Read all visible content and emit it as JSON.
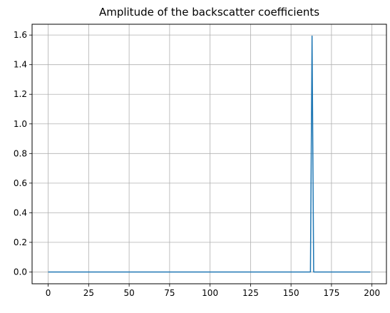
{
  "chart_data": {
    "type": "line",
    "title": "Amplitude of the backscatter coefficients",
    "xlabel": "",
    "ylabel": "",
    "xlim": [
      -9.95,
      208.95
    ],
    "ylim": [
      -0.0797,
      1.673
    ],
    "grid": true,
    "legend": "none",
    "xticks": [
      0,
      25,
      50,
      75,
      100,
      125,
      150,
      175,
      200
    ],
    "xtick_labels": [
      "0",
      "25",
      "50",
      "75",
      "100",
      "125",
      "150",
      "175",
      "200"
    ],
    "yticks": [
      0.0,
      0.2,
      0.4,
      0.6,
      0.8,
      1.0,
      1.2,
      1.4,
      1.6
    ],
    "ytick_labels": [
      "0.0",
      "0.2",
      "0.4",
      "0.6",
      "0.8",
      "1.0",
      "1.2",
      "1.4",
      "1.6"
    ],
    "series": [
      {
        "name": "amplitude",
        "color": "#1f77b4",
        "x": [
          0,
          162,
          163,
          164,
          199
        ],
        "y": [
          0.0,
          0.0,
          1.593,
          0.0,
          0.0
        ]
      }
    ]
  },
  "colors": {
    "line": "#1f77b4",
    "grid": "#b0b0b0",
    "axes": "#000000"
  }
}
